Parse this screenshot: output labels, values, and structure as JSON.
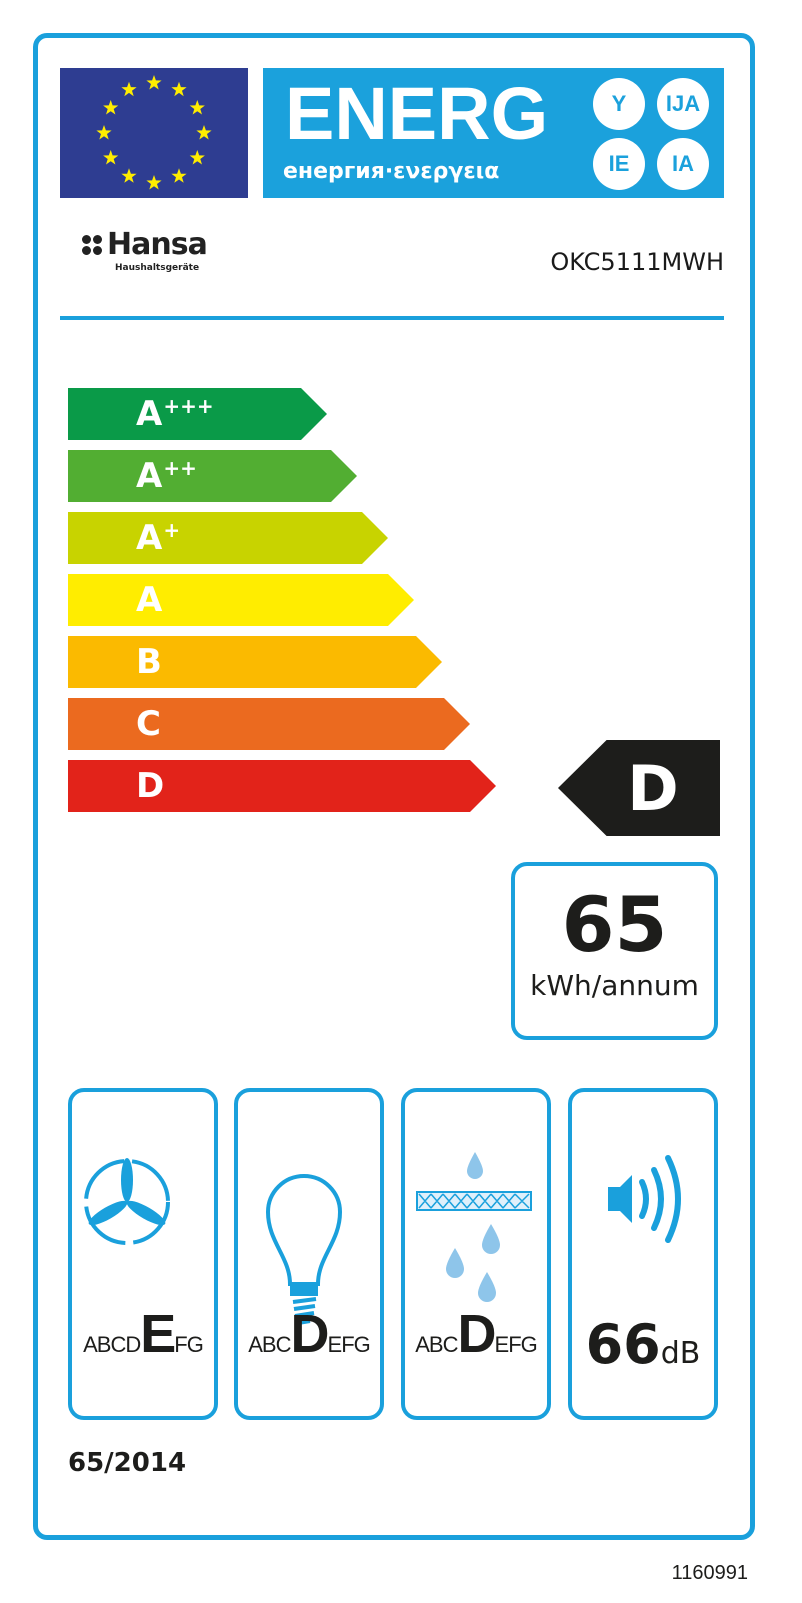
{
  "header": {
    "energy_word": "ENERG",
    "energy_sub": "енергия·ενεργεια",
    "suffixes": [
      "Y",
      "IJA",
      "IE",
      "IA"
    ],
    "flag_icon": "eu-flag-icon"
  },
  "supplier": {
    "name": "Hansa",
    "tagline": "Haushaltsgeräte"
  },
  "model": "OKC5111MWH",
  "classes": [
    {
      "letter": "A",
      "plus": "+++",
      "color": "#0a9a48"
    },
    {
      "letter": "A",
      "plus": "++",
      "color": "#52ae32"
    },
    {
      "letter": "A",
      "plus": "+",
      "color": "#c8d300"
    },
    {
      "letter": "A",
      "plus": "",
      "color": "#ffed00"
    },
    {
      "letter": "B",
      "plus": "",
      "color": "#fbba00"
    },
    {
      "letter": "C",
      "plus": "",
      "color": "#eb6a1f"
    },
    {
      "letter": "D",
      "plus": "",
      "color": "#e2231a"
    }
  ],
  "energy_class": "D",
  "consumption": {
    "value": "65",
    "unit": "kWh/annum"
  },
  "pictograms": [
    {
      "icon": "fan-icon",
      "scale": [
        "A",
        "B",
        "C",
        "D",
        "E",
        "F",
        "G"
      ],
      "selected": "E"
    },
    {
      "icon": "light-bulb-icon",
      "scale": [
        "A",
        "B",
        "C",
        "D",
        "E",
        "F",
        "G"
      ],
      "selected": "D"
    },
    {
      "icon": "grease-filter-icon",
      "scale": [
        "A",
        "B",
        "C",
        "D",
        "E",
        "F",
        "G"
      ],
      "selected": "D"
    },
    {
      "icon": "speaker-noise-icon",
      "value": "66",
      "unit": "dB"
    }
  ],
  "regulation": "65/2014",
  "code": "1160991",
  "colors": {
    "accent": "#1aa0dc",
    "dark": "#1d1d1b",
    "flag": "#2e3d91",
    "stars": "#ffed00"
  }
}
